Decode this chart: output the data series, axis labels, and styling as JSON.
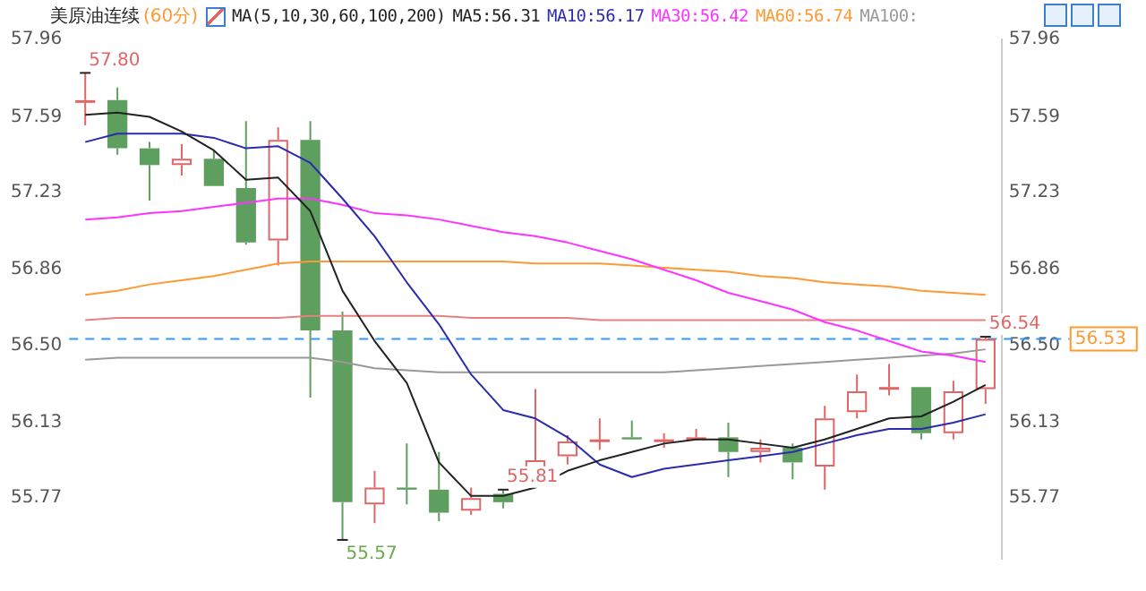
{
  "chart_data": {
    "type": "candlestick",
    "title": "美原油连续",
    "subtitle": "(60分)",
    "categories": [
      null,
      null,
      null,
      null,
      null,
      null,
      null,
      null,
      null,
      null,
      null,
      null,
      null,
      null,
      null,
      null,
      null,
      null,
      null,
      null,
      null,
      null,
      null,
      null,
      null,
      null,
      null,
      null,
      null
    ],
    "ohlc": [
      [
        57.66,
        57.8,
        57.55,
        57.67
      ],
      [
        57.67,
        57.73,
        57.41,
        57.44
      ],
      [
        57.44,
        57.47,
        57.19,
        57.36
      ],
      [
        57.36,
        57.46,
        57.31,
        57.39
      ],
      [
        57.39,
        57.43,
        57.26,
        57.26
      ],
      [
        57.25,
        57.57,
        56.98,
        56.99
      ],
      [
        57.0,
        57.54,
        56.88,
        57.48
      ],
      [
        57.48,
        57.57,
        56.25,
        56.57
      ],
      [
        56.57,
        56.66,
        55.57,
        55.75
      ],
      [
        55.74,
        55.9,
        55.65,
        55.82
      ],
      [
        55.82,
        56.03,
        55.74,
        55.81
      ],
      [
        55.81,
        55.99,
        55.66,
        55.7
      ],
      [
        55.71,
        55.82,
        55.69,
        55.77
      ],
      [
        55.79,
        55.81,
        55.72,
        55.75
      ],
      [
        55.83,
        56.29,
        55.83,
        55.95
      ],
      [
        55.97,
        56.07,
        55.93,
        56.04
      ],
      [
        56.04,
        56.15,
        56.0,
        56.05
      ],
      [
        56.06,
        56.14,
        56.05,
        56.05
      ],
      [
        56.04,
        56.08,
        56.01,
        56.05
      ],
      [
        56.05,
        56.1,
        56.05,
        56.06
      ],
      [
        56.06,
        56.13,
        55.87,
        55.99
      ],
      [
        55.99,
        56.05,
        55.94,
        56.01
      ],
      [
        56.01,
        56.03,
        55.86,
        55.94
      ],
      [
        55.92,
        56.21,
        55.81,
        56.15
      ],
      [
        56.18,
        56.36,
        56.15,
        56.28
      ],
      [
        56.29,
        56.41,
        56.26,
        56.3
      ],
      [
        56.3,
        56.3,
        56.05,
        56.08
      ],
      [
        56.08,
        56.33,
        56.05,
        56.28
      ],
      [
        56.29,
        56.54,
        56.22,
        56.53
      ]
    ],
    "colors": [
      "#e06666",
      "#5e9e5e",
      "#5e9e5e",
      "#e06666",
      "#5e9e5e",
      "#5e9e5e",
      "#e06666",
      "#5e9e5e",
      "#5e9e5e",
      "#e06666",
      "#5e9e5e",
      "#5e9e5e",
      "#e06666",
      "#5e9e5e",
      "#e06666",
      "#e06666",
      "#e06666",
      "#5e9e5e",
      "#e06666",
      "#e06666",
      "#5e9e5e",
      "#e06666",
      "#5e9e5e",
      "#e06666",
      "#e06666",
      "#e06666",
      "#5e9e5e",
      "#e06666",
      "#e06666"
    ],
    "series": [
      {
        "type": "line",
        "name": "MA5:56.31",
        "color": "#222222",
        "values": [
          57.6,
          57.61,
          57.59,
          57.52,
          57.43,
          57.29,
          57.3,
          57.14,
          56.76,
          56.52,
          56.32,
          55.94,
          55.78,
          55.78,
          55.82,
          55.9,
          55.95,
          55.99,
          56.03,
          56.05,
          56.05,
          56.03,
          56.01,
          56.05,
          56.1,
          56.15,
          56.16,
          56.23,
          56.31
        ]
      },
      {
        "type": "line",
        "name": "MA10:56.17",
        "color": "#2b2bb0",
        "values": [
          57.47,
          57.51,
          57.51,
          57.51,
          57.49,
          57.44,
          57.45,
          57.37,
          57.2,
          57.02,
          56.8,
          56.6,
          56.36,
          56.19,
          56.15,
          56.06,
          55.93,
          55.87,
          55.91,
          55.93,
          55.95,
          55.97,
          55.99,
          56.03,
          56.07,
          56.1,
          56.1,
          56.13,
          56.17
        ]
      },
      {
        "type": "line",
        "name": "MA30:56.42",
        "color": "#ff33ff",
        "values": [
          57.1,
          57.11,
          57.13,
          57.14,
          57.16,
          57.18,
          57.2,
          57.2,
          57.17,
          57.13,
          57.12,
          57.1,
          57.07,
          57.04,
          57.02,
          56.99,
          56.95,
          56.91,
          56.86,
          56.81,
          56.75,
          56.71,
          56.67,
          56.61,
          56.57,
          56.52,
          56.47,
          56.45,
          56.42
        ]
      },
      {
        "type": "line",
        "name": "MA60:56.74",
        "color": "#ff9933",
        "values": [
          56.74,
          56.76,
          56.79,
          56.81,
          56.83,
          56.86,
          56.89,
          56.9,
          56.9,
          56.9,
          56.9,
          56.9,
          56.9,
          56.9,
          56.89,
          56.89,
          56.89,
          56.88,
          56.87,
          56.86,
          56.85,
          56.83,
          56.82,
          56.8,
          56.79,
          56.78,
          56.76,
          56.75,
          56.74
        ]
      },
      {
        "type": "line",
        "name": "MA100:",
        "color": "#999999",
        "values": [
          56.43,
          56.44,
          56.44,
          56.44,
          56.44,
          56.44,
          56.44,
          56.44,
          56.42,
          56.39,
          56.38,
          56.37,
          56.37,
          56.37,
          56.37,
          56.37,
          56.37,
          56.37,
          56.37,
          56.38,
          56.39,
          56.4,
          56.41,
          56.42,
          56.43,
          56.44,
          56.45,
          56.46,
          56.48
        ]
      },
      {
        "type": "line",
        "color": "#e88080",
        "values": [
          56.62,
          56.63,
          56.63,
          56.63,
          56.63,
          56.63,
          56.63,
          56.64,
          56.64,
          56.64,
          56.64,
          56.64,
          56.63,
          56.63,
          56.63,
          56.63,
          56.62,
          56.62,
          56.62,
          56.62,
          56.62,
          56.62,
          56.62,
          56.62,
          56.62,
          56.62,
          56.62,
          56.62,
          56.62
        ]
      }
    ],
    "ylim": [
      55.48,
      57.96
    ],
    "yticks": [
      55.77,
      56.13,
      {
        "value": 56.5,
        "label": "56.50"
      },
      56.86,
      57.23,
      57.59,
      57.96
    ],
    "y2lim": [
      55.48,
      57.96
    ],
    "y2ticks": [
      55.77,
      56.13,
      {
        "value": 56.5,
        "label": "56.50"
      },
      56.86,
      57.23,
      57.59,
      57.96
    ],
    "ref_lines": [
      {
        "axis": "y",
        "value": 56.53,
        "label": "56.53",
        "color": "#3399ff",
        "line_style": "dashed"
      }
    ],
    "annotations": [
      "MA(5,10,30,60,100,200)",
      "57.80",
      "55.57",
      "55.81",
      "56.54"
    ],
    "legend": "top",
    "marker": "none",
    "line_style": "solid"
  }
}
